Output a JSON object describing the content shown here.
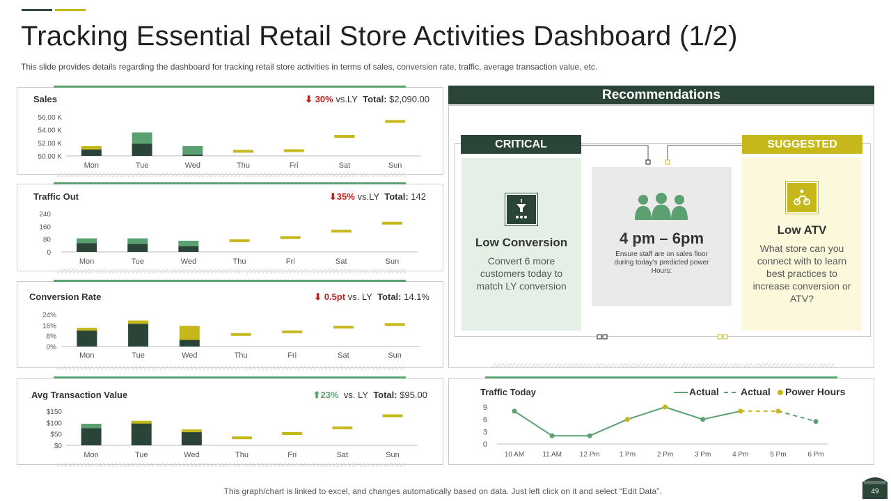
{
  "header": {
    "title": "Tracking Essential Retail Store Activities Dashboard (1/2)",
    "subtitle": "This slide provides  details regarding the dashboard for tracking retail store activities in terms of sales, conversion  rate, traffic, average  transaction value, etc."
  },
  "colors": {
    "dark_green": "#2a4538",
    "light_green": "#5aa070",
    "yellow": "#c6b81b",
    "red": "#c0201e"
  },
  "days": [
    "Mon",
    "Tue",
    "Wed",
    "Thu",
    "Fri",
    "Sat",
    "Sun"
  ],
  "sales": {
    "title": "Sales",
    "change": "30%",
    "vs": "vs.LY",
    "total_label": "Total:",
    "total": "$2,090.00",
    "y_ticks": [
      "56.00 K",
      "54.00 K",
      "52.00 K",
      "50.00 K"
    ]
  },
  "traffic_out": {
    "title": "Traffic Out",
    "change": "35%",
    "vs": "vs.LY",
    "total_label": "Total:",
    "total": "142",
    "y_ticks": [
      "240",
      "160",
      "80",
      "0"
    ]
  },
  "conversion": {
    "title": "Conversion Rate",
    "change": "0.5pt",
    "vs": "vs. LY",
    "total_label": "Total:",
    "total": "14.1%",
    "y_ticks": [
      "24%",
      "16%",
      "8%",
      "0%"
    ]
  },
  "atv": {
    "title": "Avg Transaction Value",
    "change": "23%",
    "vs": "vs. LY",
    "total_label": "Total:",
    "total": "$95.00",
    "y_ticks": [
      "$150",
      "$100",
      "$50",
      "$0"
    ]
  },
  "chart_data": [
    {
      "type": "bar",
      "title": "Sales",
      "categories": [
        "Mon",
        "Tue",
        "Wed",
        "Thu",
        "Fri",
        "Sat",
        "Sun"
      ],
      "ylim": [
        50000,
        56000
      ],
      "series": [
        {
          "values": [
            51000,
            51900,
            50200,
            null,
            null,
            null,
            null
          ]
        },
        {
          "values": [
            51500,
            53600,
            51500,
            50700,
            50800,
            53000,
            55300
          ]
        }
      ]
    },
    {
      "type": "bar",
      "title": "Traffic Out",
      "categories": [
        "Mon",
        "Tue",
        "Wed",
        "Thu",
        "Fri",
        "Sat",
        "Sun"
      ],
      "ylim": [
        0,
        240
      ],
      "series": [
        {
          "values": [
            55,
            50,
            35,
            null,
            null,
            null,
            null
          ]
        },
        {
          "values": [
            85,
            85,
            70,
            70,
            90,
            130,
            180
          ]
        }
      ]
    },
    {
      "type": "bar",
      "title": "Conversion Rate",
      "categories": [
        "Mon",
        "Tue",
        "Wed",
        "Thu",
        "Fri",
        "Sat",
        "Sun"
      ],
      "ylim": [
        0,
        24
      ],
      "series": [
        {
          "values": [
            12,
            17,
            5,
            null,
            null,
            null,
            null
          ]
        },
        {
          "values": [
            14,
            19.5,
            15.5,
            9,
            11,
            14.5,
            16.5
          ]
        }
      ]
    },
    {
      "type": "bar",
      "title": "Avg Transaction Value",
      "categories": [
        "Mon",
        "Tue",
        "Wed",
        "Thu",
        "Fri",
        "Sat",
        "Sun"
      ],
      "ylim": [
        0,
        150
      ],
      "series": [
        {
          "values": [
            75,
            100,
            60,
            null,
            null,
            null,
            null
          ]
        },
        {
          "values": [
            95,
            108,
            70,
            33,
            52,
            77,
            130
          ]
        }
      ]
    },
    {
      "type": "line",
      "title": "Traffic Today",
      "categories": [
        "10 AM",
        "11 AM",
        "12 Pm",
        "1 Pm",
        "2 Pm",
        "3  Pm",
        "4  Pm",
        "5  Pm",
        "6  Pm"
      ],
      "ylim": [
        0,
        9
      ],
      "y_ticks": [
        "9",
        "6",
        "3",
        "0"
      ],
      "series": [
        {
          "name": "Actual",
          "values": [
            8,
            2,
            2,
            6,
            9,
            6,
            8,
            null,
            null
          ]
        },
        {
          "name": "Actual",
          "values": [
            null,
            null,
            null,
            null,
            null,
            null,
            8,
            8,
            5.5
          ]
        },
        {
          "name": "Power Hours",
          "values": [
            null,
            null,
            null,
            6,
            9,
            null,
            8,
            8,
            null
          ]
        }
      ]
    }
  ],
  "recommendations": {
    "header": "Recommendations",
    "critical": {
      "tab": "CRITICAL",
      "title": "Low Conversion",
      "text": "Convert 6 more customers today to match LY conversion"
    },
    "middle": {
      "title": "4 pm – 6pm",
      "text": "Ensure staff are on sales floor  during today's predicted power Hours:"
    },
    "suggested": {
      "tab": "SUGGESTED",
      "title": "Low ATV",
      "text": "What store can you connect with to learn best practices to increase conversion or ATV?"
    }
  },
  "traffic_today": {
    "title": "Traffic Today",
    "legend_actual_1": "Actual",
    "legend_actual_2": "Actual",
    "legend_power": "Power Hours"
  },
  "footer": {
    "note": "This graph/chart is linked to excel, and changes automatically based on data. Just left click on it and select “Edit Data”.",
    "page_number": "49"
  }
}
